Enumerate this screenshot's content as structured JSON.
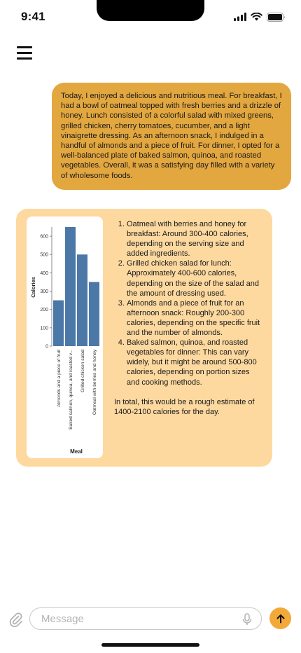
{
  "status_bar": {
    "time": "9:41"
  },
  "user_message": {
    "text": "Today, I enjoyed a delicious and nutritious meal. For breakfast, I had a bowl of oatmeal topped with fresh berries and a drizzle of honey. Lunch consisted of a colorful salad with mixed greens, grilled chicken, cherry tomatoes, cucumber, and a light vinaigrette dressing. As an afternoon snack, I indulged in a handful of almonds and a piece of fruit. For dinner, I opted for a well-balanced plate of baked salmon, quinoa, and roasted vegetables. Overall, it was a satisfying day filled with a variety of wholesome foods."
  },
  "assistant_reply": {
    "items": [
      "Oatmeal with berries and honey for breakfast: Around 300-400 calories, depending on the serving size and added ingredients.",
      "Grilled chicken salad for lunch: Approximately 400-600 calories, depending on the size of the salad and the amount of dressing used.",
      "Almonds and a piece of fruit for an afternoon snack: Roughly 200-300 calories, depending on the specific fruit and the number of almonds.",
      "Baked salmon, quinoa, and roasted vegetables for dinner: This can vary widely, but it might be around 500-800 calories, depending on portion sizes and cooking methods."
    ],
    "summary": "In total, this would be a rough estimate of 1400-2100 calories for the day."
  },
  "chart_data": {
    "type": "bar",
    "categories": [
      "Almonds and a piece of fruit",
      "Baked salmon, quinoa, and roasted vegetables",
      "Grilled chicken salad",
      "Oatmeal with berries and honey"
    ],
    "category_labels": [
      "Almonds and a piece of fruit",
      "Baked salmon, quinoa, and roasted v...",
      "Grilled chicken salad",
      "Oatmeal with berries and honey"
    ],
    "values": [
      250,
      650,
      500,
      350
    ],
    "xlabel": "Meal",
    "ylabel": "Calories",
    "ylim": [
      0,
      650
    ],
    "yticks": [
      "0",
      "100",
      "200",
      "300",
      "400",
      "500",
      "600"
    ],
    "bar_color": "#4c78a8"
  },
  "composer": {
    "placeholder": "Message"
  }
}
